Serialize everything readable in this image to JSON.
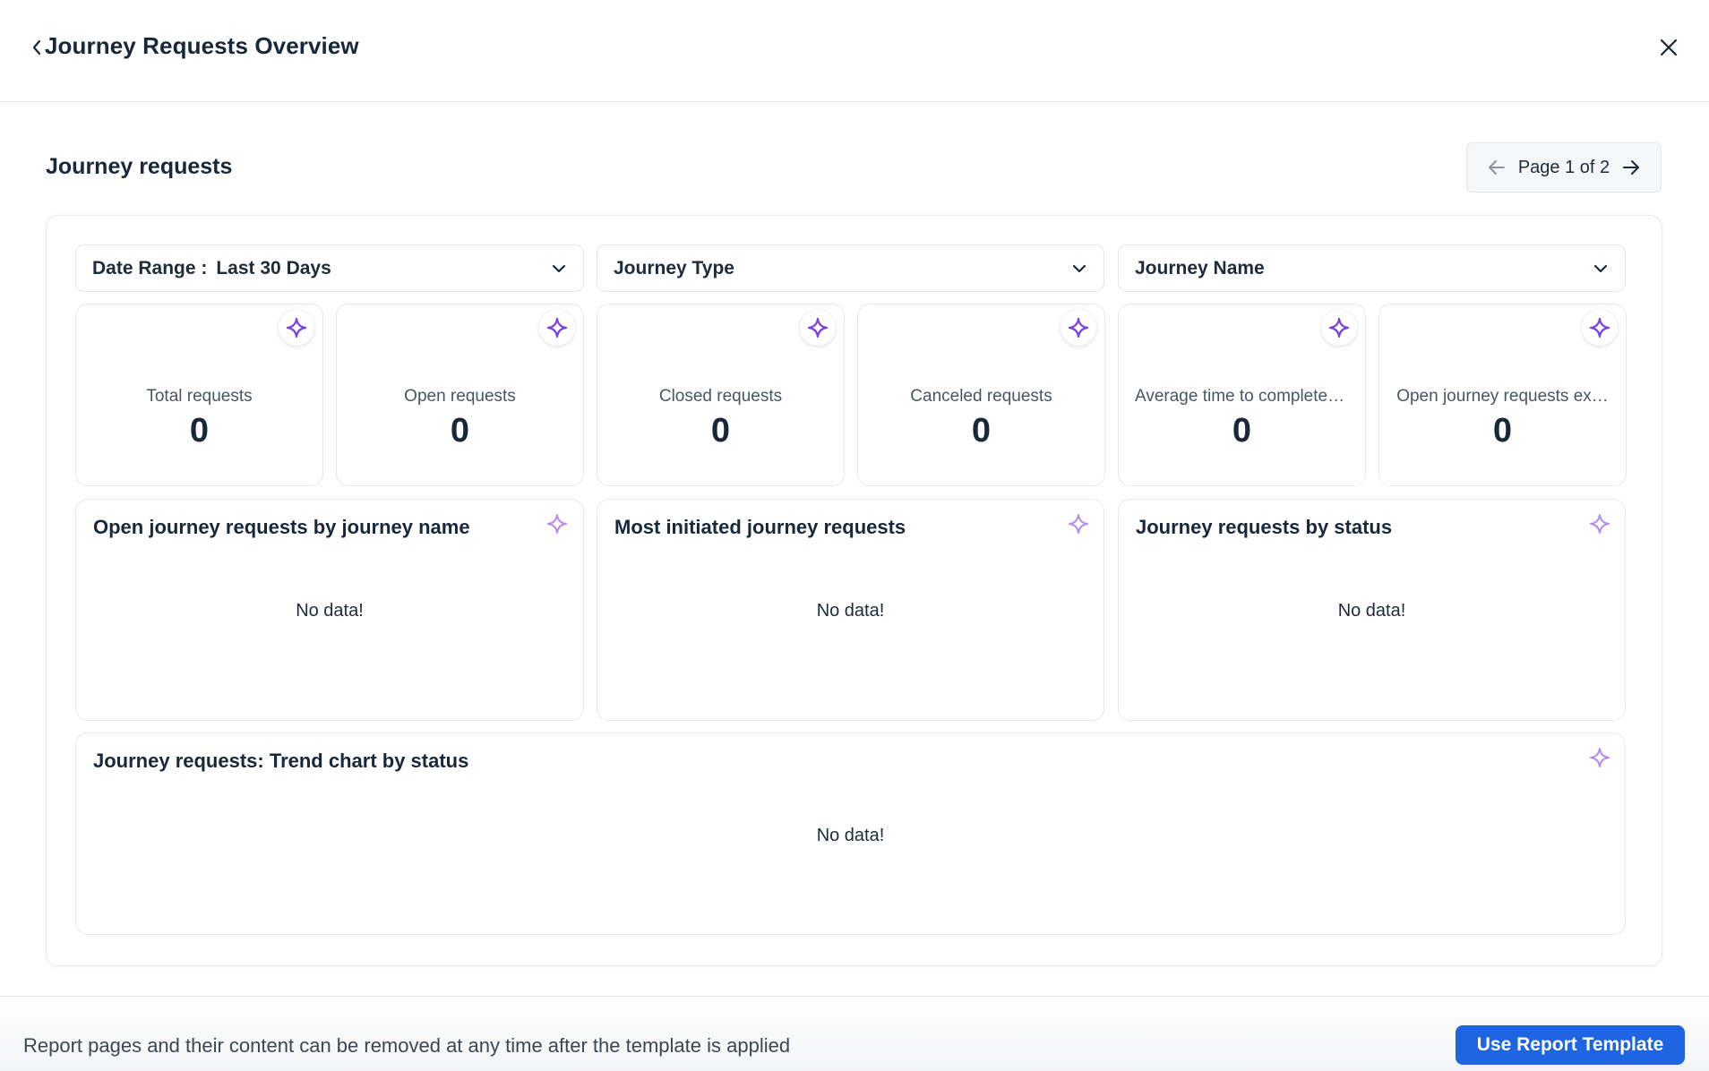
{
  "header": {
    "title": "Journey Requests Overview",
    "back_icon": "chevron-left-icon",
    "close_icon": "close-icon"
  },
  "section": {
    "title": "Journey requests",
    "pager": {
      "label": "Page 1 of 2",
      "current_page": 1,
      "total_pages": 2
    }
  },
  "filters": {
    "date_range": {
      "label": "Date Range :",
      "value": "Last 30 Days"
    },
    "journey_type": {
      "label": "Journey Type"
    },
    "journey_name": {
      "label": "Journey Name"
    }
  },
  "stats": [
    {
      "label": "Total requests",
      "value": "0"
    },
    {
      "label": "Open requests",
      "value": "0"
    },
    {
      "label": "Closed requests",
      "value": "0"
    },
    {
      "label": "Canceled requests",
      "value": "0"
    },
    {
      "label": "Average time to complete …",
      "value": "0"
    },
    {
      "label": "Open journey requests ex…",
      "value": "0"
    }
  ],
  "charts": [
    {
      "title": "Open journey requests by journey name",
      "empty_text": "No data!"
    },
    {
      "title": "Most initiated journey requests",
      "empty_text": "No data!"
    },
    {
      "title": "Journey requests by status",
      "empty_text": "No data!"
    },
    {
      "title": "Journey requests: Trend chart by status",
      "empty_text": "No data!"
    }
  ],
  "footer": {
    "note": "Report pages and their content can be removed at any time after the template is applied",
    "button_label": "Use Report Template"
  },
  "colors": {
    "accent": "#1f64e0",
    "sparkle": "#7b3fe4",
    "sparkle_light": "#b48cf0",
    "text": "#17283a"
  }
}
